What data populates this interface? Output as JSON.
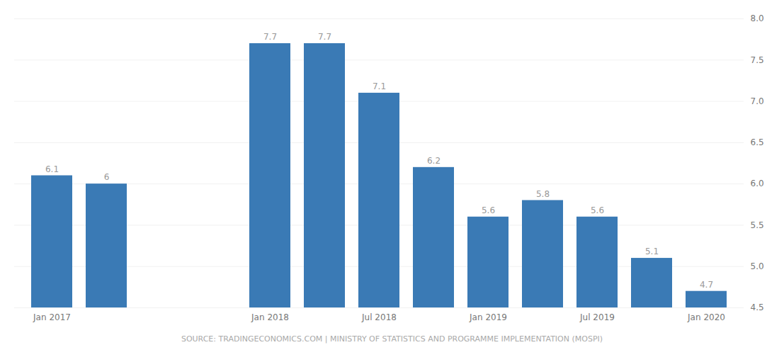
{
  "chart_data": {
    "type": "bar",
    "categories": [
      "Jan 2017",
      null,
      null,
      null,
      "Jan 2018",
      null,
      "Jul 2018",
      null,
      "Jan 2019",
      null,
      "Jul 2019",
      null,
      "Jan 2020"
    ],
    "values": [
      6.1,
      6.0,
      null,
      null,
      7.7,
      7.7,
      7.1,
      6.2,
      5.6,
      5.8,
      5.6,
      5.1,
      4.7
    ],
    "value_labels": [
      "6.1",
      "6",
      null,
      null,
      "7.7",
      "7.7",
      "7.1",
      "6.2",
      "5.6",
      "5.8",
      "5.6",
      "5.1",
      "4.7"
    ],
    "color": "#3a7ab5",
    "ylim": [
      4.5,
      8.0
    ],
    "yticks": [
      4.5,
      {
        "value": 5.0,
        "label": "5.0"
      },
      5.5,
      {
        "value": 6.0,
        "label": "6.0"
      },
      6.5,
      {
        "value": 7.0,
        "label": "7.0"
      },
      7.5,
      {
        "value": 8.0,
        "label": "8.0"
      }
    ],
    "grid": true,
    "data_labels": true,
    "caption": "SOURCE: TRADINGECONOMICS.COM | MINISTRY OF STATISTICS AND PROGRAMME IMPLEMENTATION (MOSPI)"
  }
}
